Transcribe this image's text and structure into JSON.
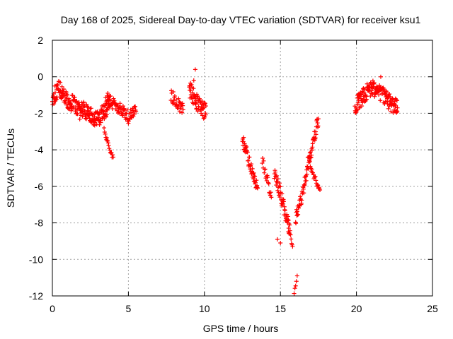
{
  "chart_data": {
    "type": "scatter",
    "title": "Day 168 of 2025, Sidereal Day-to-day VTEC variation (SDTVAR) for receiver ksu1",
    "xlabel": "GPS time / hours",
    "ylabel": "SDTVAR / TECUs",
    "xlim": [
      0,
      25
    ],
    "ylim": [
      -12,
      2
    ],
    "xticks": [
      0,
      5,
      10,
      15,
      20,
      25
    ],
    "yticks": [
      2,
      0,
      -2,
      -4,
      -6,
      -8,
      -10,
      -12
    ],
    "grid": true,
    "marker": "+",
    "color": "#ff0000",
    "series": [
      {
        "name": "ksu1",
        "segments": [
          {
            "x": [
              0.0,
              0.2,
              0.4,
              0.6,
              0.8,
              1.0,
              1.2,
              1.4,
              1.6,
              1.8,
              2.0
            ],
            "y": [
              -1.2,
              -0.9,
              -0.6,
              -0.8,
              -1.0,
              -1.3,
              -1.5,
              -1.4,
              -1.7,
              -1.9,
              -1.8
            ],
            "spread": 0.45,
            "density": 6
          },
          {
            "x": [
              2.0,
              2.3,
              2.6,
              2.9,
              3.2,
              3.5,
              3.8
            ],
            "y": [
              -1.7,
              -2.0,
              -2.2,
              -2.4,
              -2.1,
              -1.8,
              -1.3
            ],
            "spread": 0.45,
            "density": 6
          },
          {
            "x": [
              3.4,
              3.55,
              3.7,
              3.85,
              4.0
            ],
            "y": [
              -2.8,
              -3.3,
              -3.8,
              -4.2,
              -4.4
            ],
            "spread": 0.15,
            "density": 3
          },
          {
            "x": [
              3.5,
              4.0,
              4.5,
              5.0,
              5.5
            ],
            "y": [
              -1.1,
              -1.5,
              -1.8,
              -2.2,
              -1.9
            ],
            "spread": 0.35,
            "density": 4
          },
          {
            "x": [
              7.8,
              8.2,
              8.6
            ],
            "y": [
              -1.0,
              -1.4,
              -1.8
            ],
            "spread": 0.35,
            "density": 4
          },
          {
            "x": [
              9.0,
              9.3,
              9.6,
              9.9,
              10.1
            ],
            "y": [
              -0.7,
              -1.1,
              -1.5,
              -1.9,
              -1.6
            ],
            "spread": 0.5,
            "density": 6
          },
          {
            "x": [
              12.5,
              12.7,
              12.9,
              13.1,
              13.3,
              13.5
            ],
            "y": [
              -3.4,
              -4.0,
              -4.6,
              -5.1,
              -5.6,
              -6.1
            ],
            "spread": 0.35,
            "density": 5
          },
          {
            "x": [
              13.8,
              14.0,
              14.2,
              14.4
            ],
            "y": [
              -4.6,
              -5.2,
              -5.9,
              -6.6
            ],
            "spread": 0.3,
            "density": 3
          },
          {
            "x": [
              14.6,
              14.8,
              15.0,
              15.2,
              15.4,
              15.6
            ],
            "y": [
              -5.3,
              -5.8,
              -6.4,
              -7.1,
              -7.8,
              -8.6
            ],
            "spread": 0.4,
            "density": 5
          },
          {
            "x": [
              15.5,
              15.6,
              15.7,
              15.8
            ],
            "y": [
              -7.6,
              -8.2,
              -8.8,
              -9.3
            ],
            "spread": 0.2,
            "density": 3
          },
          {
            "x": [
              15.9,
              16.0,
              16.1
            ],
            "y": [
              -11.9,
              -11.4,
              -10.9
            ],
            "spread": 0.1,
            "density": 2
          },
          {
            "x": [
              16.0,
              16.3,
              16.6,
              16.9,
              17.2,
              17.5
            ],
            "y": [
              -7.8,
              -6.9,
              -5.8,
              -4.6,
              -3.4,
              -2.3
            ],
            "spread": 0.35,
            "density": 5
          },
          {
            "x": [
              16.8,
              17.0,
              17.2,
              17.4,
              17.6
            ],
            "y": [
              -4.3,
              -4.9,
              -5.4,
              -5.9,
              -6.2
            ],
            "spread": 0.2,
            "density": 3
          },
          {
            "x": [
              19.9,
              20.3,
              20.7,
              21.1,
              21.5,
              21.9,
              22.3,
              22.7
            ],
            "y": [
              -1.6,
              -1.2,
              -0.8,
              -0.6,
              -0.8,
              -1.1,
              -1.5,
              -1.7
            ],
            "spread": 0.45,
            "density": 6
          }
        ],
        "outliers": [
          {
            "x": 9.4,
            "y": 0.4
          },
          {
            "x": 9.3,
            "y": -0.2
          },
          {
            "x": 14.8,
            "y": -8.9
          },
          {
            "x": 15.0,
            "y": -9.1
          },
          {
            "x": 21.6,
            "y": 0.0
          }
        ]
      }
    ]
  }
}
